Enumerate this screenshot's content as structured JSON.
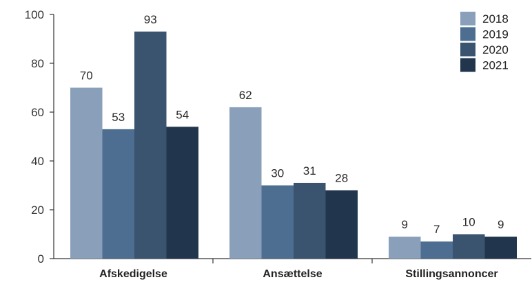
{
  "chart_data": {
    "type": "bar",
    "categories": [
      "Afskedigelse",
      "Ansættelse",
      "Stillingsannoncer"
    ],
    "series": [
      {
        "name": "2018",
        "values": [
          70,
          62,
          9
        ],
        "color": "#8aa0ba"
      },
      {
        "name": "2019",
        "values": [
          53,
          30,
          7
        ],
        "color": "#4d6e91"
      },
      {
        "name": "2020",
        "values": [
          93,
          31,
          10
        ],
        "color": "#3a5470"
      },
      {
        "name": "2021",
        "values": [
          54,
          28,
          9
        ],
        "color": "#21364d"
      }
    ],
    "y_ticks": [
      "0",
      "20",
      "40",
      "60",
      "80",
      "100"
    ],
    "ylim": [
      0,
      100
    ],
    "grid": false,
    "legend_position": "top-right",
    "show_data_labels": true
  }
}
